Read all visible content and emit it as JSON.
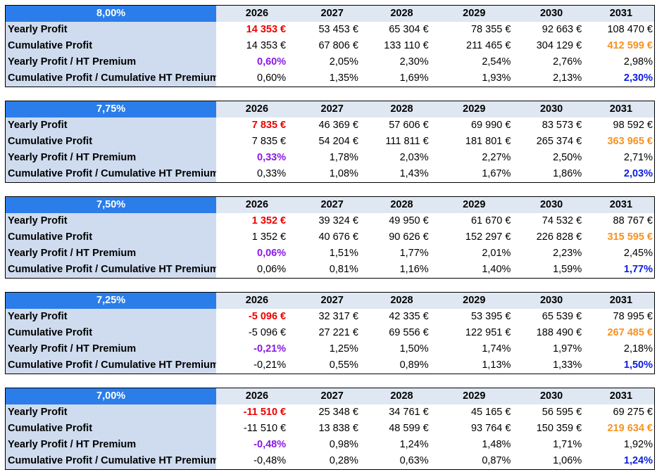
{
  "years": [
    "2026",
    "2027",
    "2028",
    "2029",
    "2030",
    "2031"
  ],
  "row_labels": {
    "yearly_profit": "Yearly Profit",
    "cumulative_profit": "Cumulative Profit",
    "yearly_ratio": "Yearly Profit / HT Premium",
    "cumulative_ratio": "Cumulative Profit / Cumulative HT Premium"
  },
  "colors": {
    "header_blue": "#2b7de9",
    "label_bg": "#cfdcef",
    "year_bg": "#dfe7f2",
    "red": "#ee0000",
    "purple": "#8a18e8",
    "orange": "#f59322",
    "blue": "#0a1ee0"
  },
  "blocks": [
    {
      "rate": "8,00%",
      "yearly_profit": [
        "14 353 €",
        "53 453 €",
        "65 304 €",
        "78 355 €",
        "92 663 €",
        "108 470 €"
      ],
      "cumulative_profit": [
        "14 353 €",
        "67 806 €",
        "133 110 €",
        "211 465 €",
        "304 129 €",
        "412 599 €"
      ],
      "yearly_ratio": [
        "0,60%",
        "2,05%",
        "2,30%",
        "2,54%",
        "2,76%",
        "2,98%"
      ],
      "cumulative_ratio": [
        "0,60%",
        "1,35%",
        "1,69%",
        "1,93%",
        "2,13%",
        "2,30%"
      ]
    },
    {
      "rate": "7,75%",
      "yearly_profit": [
        "7 835 €",
        "46 369 €",
        "57 606 €",
        "69 990 €",
        "83 573 €",
        "98 592 €"
      ],
      "cumulative_profit": [
        "7 835 €",
        "54 204 €",
        "111 811 €",
        "181 801 €",
        "265 374 €",
        "363 965 €"
      ],
      "yearly_ratio": [
        "0,33%",
        "1,78%",
        "2,03%",
        "2,27%",
        "2,50%",
        "2,71%"
      ],
      "cumulative_ratio": [
        "0,33%",
        "1,08%",
        "1,43%",
        "1,67%",
        "1,86%",
        "2,03%"
      ]
    },
    {
      "rate": "7,50%",
      "yearly_profit": [
        "1 352 €",
        "39 324 €",
        "49 950 €",
        "61 670 €",
        "74 532 €",
        "88 767 €"
      ],
      "cumulative_profit": [
        "1 352 €",
        "40 676 €",
        "90 626 €",
        "152 297 €",
        "226 828 €",
        "315 595 €"
      ],
      "yearly_ratio": [
        "0,06%",
        "1,51%",
        "1,77%",
        "2,01%",
        "2,23%",
        "2,45%"
      ],
      "cumulative_ratio": [
        "0,06%",
        "0,81%",
        "1,16%",
        "1,40%",
        "1,59%",
        "1,77%"
      ]
    },
    {
      "rate": "7,25%",
      "yearly_profit": [
        "-5 096 €",
        "32 317 €",
        "42 335 €",
        "53 395 €",
        "65 539 €",
        "78 995 €"
      ],
      "cumulative_profit": [
        "-5 096 €",
        "27 221 €",
        "69 556 €",
        "122 951 €",
        "188 490 €",
        "267 485 €"
      ],
      "yearly_ratio": [
        "-0,21%",
        "1,25%",
        "1,50%",
        "1,74%",
        "1,97%",
        "2,18%"
      ],
      "cumulative_ratio": [
        "-0,21%",
        "0,55%",
        "0,89%",
        "1,13%",
        "1,33%",
        "1,50%"
      ]
    },
    {
      "rate": "7,00%",
      "yearly_profit": [
        "-11 510 €",
        "25 348 €",
        "34 761 €",
        "45 165 €",
        "56 595 €",
        "69 275 €"
      ],
      "cumulative_profit": [
        "-11 510 €",
        "13 838 €",
        "48 599 €",
        "93 764 €",
        "150 359 €",
        "219 634 €"
      ],
      "yearly_ratio": [
        "-0,48%",
        "0,98%",
        "1,24%",
        "1,48%",
        "1,71%",
        "1,92%"
      ],
      "cumulative_ratio": [
        "-0,48%",
        "0,28%",
        "0,63%",
        "0,87%",
        "1,06%",
        "1,24%"
      ]
    }
  ]
}
